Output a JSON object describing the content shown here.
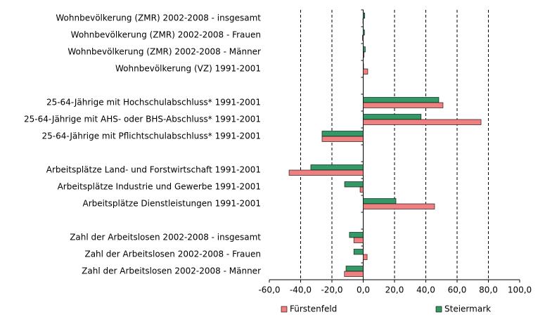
{
  "chart_data": {
    "type": "hbar",
    "categories": [
      "Wohnbevölkerung (ZMR) 2002-2008 - insgesamt",
      "Wohnbevölkerung (ZMR) 2002-2008 - Frauen",
      "Wohnbevölkerung (ZMR) 2002-2008 - Männer",
      "Wohnbevölkerung (VZ) 1991-2001",
      null,
      "25-64-Jährige mit Hochschulabschluss* 1991-2001",
      "25-64-Jährige mit AHS- oder BHS-Abschluss* 1991-2001",
      "25-64-Jährige mit Pflichtschulabschluss* 1991-2001",
      null,
      "Arbeitsplätze Land- und Forstwirtschaft 1991-2001",
      "Arbeitsplätze Industrie und Gewerbe 1991-2001",
      "Arbeitsplätze Dienstleistungen 1991-2001",
      null,
      "Zahl der Arbeitslosen 2002-2008 - insgesamt",
      "Zahl der Arbeitslosen 2002-2008 - Frauen",
      "Zahl der Arbeitslosen 2002-2008 - Männer"
    ],
    "series": [
      {
        "name": "Steiermark",
        "color": "#339966",
        "values": [
          1.0,
          0.8,
          1.3,
          0,
          null,
          48.3,
          37,
          -26.3,
          null,
          -33.5,
          -11.9,
          20.9,
          null,
          -8.8,
          -6,
          -11
        ]
      },
      {
        "name": "Fürstenfeld",
        "color": "#f08080",
        "values": [
          -0.2,
          -0.5,
          0.5,
          2.9,
          null,
          51,
          75.3,
          -26.3,
          null,
          -47.4,
          -2,
          45.6,
          null,
          -6,
          2.5,
          -12
        ]
      }
    ],
    "xlim": [
      -60,
      100
    ],
    "xticks": [
      {
        "value": -60,
        "label": "-60,0"
      },
      {
        "value": -40,
        "label": "-40,0"
      },
      {
        "value": -20,
        "label": "-20,0"
      },
      {
        "value": 0,
        "label": "0,0"
      },
      {
        "value": 20,
        "label": "20,0"
      },
      {
        "value": 40,
        "label": "40,0"
      },
      {
        "value": 60,
        "label": "60,0"
      },
      {
        "value": 80,
        "label": "80,0"
      },
      {
        "value": 100,
        "label": "100,0"
      }
    ],
    "grid": true,
    "legend": "bottom"
  }
}
